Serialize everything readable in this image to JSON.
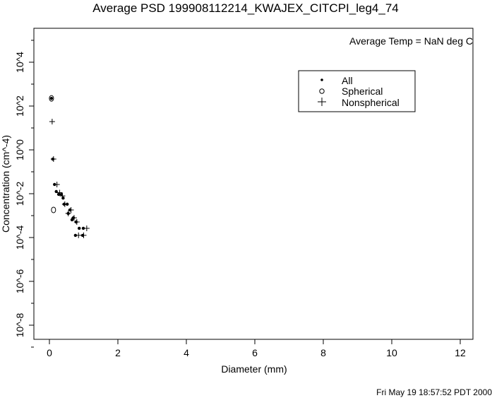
{
  "chart_data": {
    "type": "scatter",
    "title": "Average PSD 199908112214_KWAJEX_CITCPI_leg4_74",
    "xlabel": "Diameter (mm)",
    "ylabel": "Concentration (cm^-4)",
    "xlim": [
      -0.4,
      12.4
    ],
    "ylim_log10": [
      -9.0,
      5.5
    ],
    "yscale": "log",
    "x_ticks": [
      0,
      2,
      4,
      6,
      8,
      10,
      12
    ],
    "x_tick_labels": [
      "0",
      "2",
      "4",
      "6",
      "8",
      "10",
      "12"
    ],
    "y_ticks_log10": [
      4,
      2,
      0,
      -2,
      -4,
      -6,
      -8
    ],
    "y_tick_labels": [
      "10^4",
      "10^2",
      "10^0",
      "10^-2",
      "10^-4",
      "10^-6",
      "10^-8"
    ],
    "y_minor_ticks_log10": [
      5,
      3,
      1,
      -1,
      -3,
      -5,
      -7,
      -9
    ],
    "annotation": "Average Temp = NaN deg C",
    "legend_placement": "top-right",
    "series": [
      {
        "name": "All",
        "marker": "dot",
        "x": [
          0.06,
          0.1,
          0.15,
          0.2,
          0.27,
          0.35,
          0.4,
          0.43,
          0.52,
          0.6,
          0.55,
          0.66,
          0.7,
          0.78,
          0.87,
          0.99,
          0.76,
          0.97
        ],
        "y_log10": [
          2.35,
          -0.42,
          -1.58,
          -1.9,
          -2.03,
          -2.03,
          -2.2,
          -2.48,
          -2.48,
          -2.74,
          -2.9,
          -3.19,
          -3.1,
          -3.29,
          -3.58,
          -3.58,
          -3.9,
          -3.9
        ]
      },
      {
        "name": "Spherical",
        "marker": "circle",
        "x": [
          0.06,
          0.12
        ],
        "y_log10": [
          2.35,
          -2.74
        ]
      },
      {
        "name": "Nonspherical",
        "marker": "plus",
        "x": [
          0.08,
          0.12,
          0.22,
          0.3,
          0.38,
          0.45,
          0.55,
          0.63,
          0.72,
          0.8,
          1.09,
          0.85,
          1.0
        ],
        "y_log10": [
          1.29,
          -0.42,
          -1.58,
          -1.95,
          -2.1,
          -2.48,
          -2.9,
          -2.74,
          -3.1,
          -3.29,
          -3.58,
          -3.9,
          -3.9
        ]
      }
    ]
  },
  "footer": {
    "timestamp": "Fri May 19 18:57:52 PDT 2000"
  }
}
